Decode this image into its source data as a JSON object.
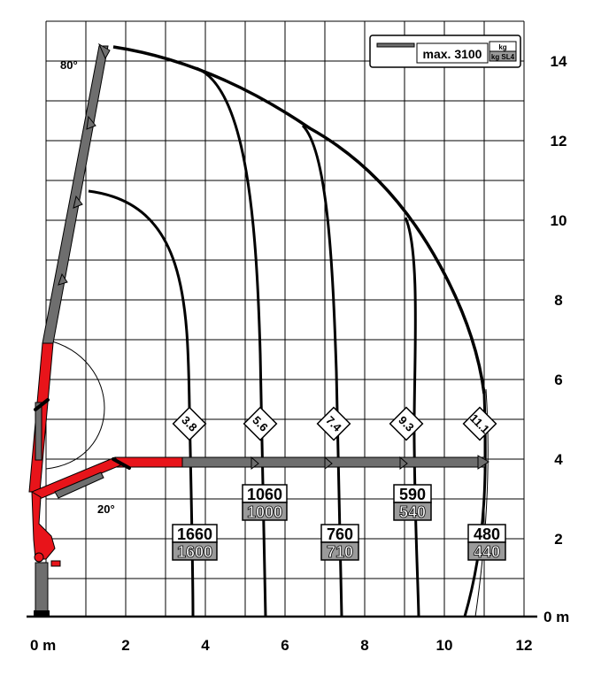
{
  "axes": {
    "x_ticks": [
      "0 m",
      "2",
      "4",
      "6",
      "8",
      "10",
      "12"
    ],
    "y_ticks": [
      "0 m",
      "2",
      "4",
      "6",
      "8",
      "10",
      "12",
      "14"
    ]
  },
  "legend": {
    "label": "max. 3100",
    "unit_top": "kg",
    "unit_bottom": "kg SL4"
  },
  "angles": {
    "top": "80°",
    "bottom": "20°"
  },
  "reach_labels": [
    "3.8",
    "5.6",
    "7.4",
    "9.3",
    "11.1"
  ],
  "capacities": [
    {
      "kg": "1660",
      "kg_sl4": "1600"
    },
    {
      "kg": "1060",
      "kg_sl4": "1000"
    },
    {
      "kg": "760",
      "kg_sl4": "710"
    },
    {
      "kg": "590",
      "kg_sl4": "540"
    },
    {
      "kg": "480",
      "kg_sl4": "440"
    }
  ],
  "colors": {
    "boom_base": "#e8141a",
    "boom_extension": "#6e6e6e",
    "grid": "#000000",
    "label_fill_kg_sl4": "#9a9a9a"
  }
}
